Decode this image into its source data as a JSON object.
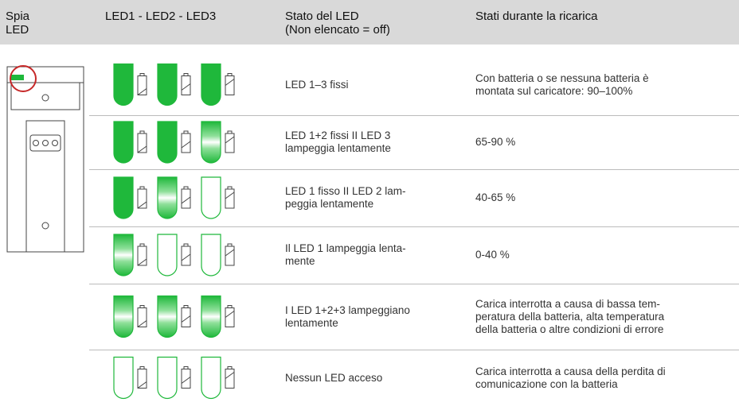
{
  "header": [
    "Spia\nLED",
    "LED1 - LED2 - LED3",
    "Stato del LED\n(Non elencato = off)",
    "Stati durante la ricarica"
  ],
  "rows": [
    {
      "state": "LED 1–3 fissi",
      "charge": "Con batteria o se nessuna batteria è\nmontata sul caricatore: 90–100%"
    },
    {
      "state": "LED 1+2 fissi II LED 3\nlampeggia lentamente",
      "charge": "65-90 %"
    },
    {
      "state": "LED 1 fisso II LED 2 lam-\npeggia lentamente",
      "charge": "40-65 %"
    },
    {
      "state": "Il LED 1 lampeggia lenta-\nmente",
      "charge": "0-40 %"
    },
    {
      "state": "I LED 1+2+3 lampeggiano\nlentamente",
      "charge": "Carica interrotta a causa di bassa tem-\nperatura della batteria, alta temperatura\ndella batteria o altre condizioni di errore"
    },
    {
      "state": "Nessun LED acceso",
      "charge": "Carica interrotta a causa della perdita di\ncomunicazione con la batteria"
    }
  ]
}
